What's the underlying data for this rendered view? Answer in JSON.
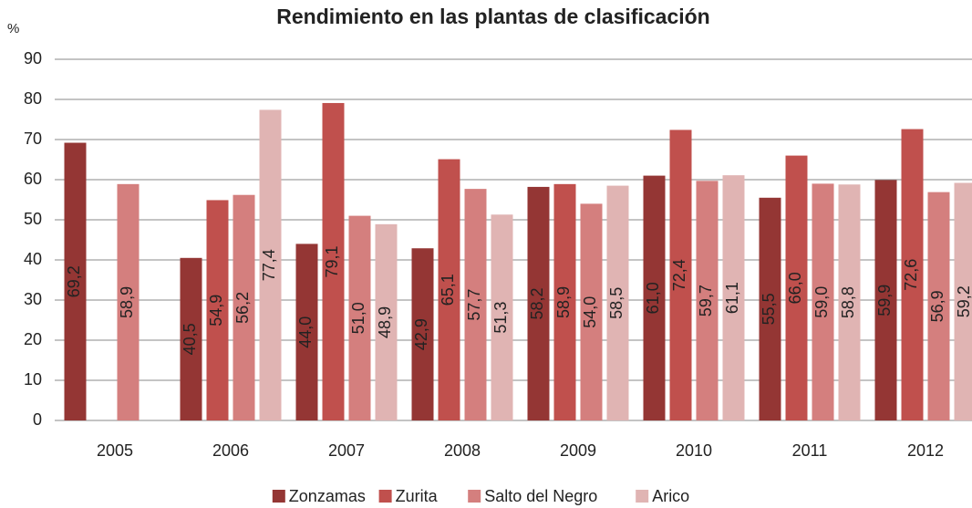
{
  "chart_data": {
    "type": "bar",
    "title": "Rendimiento en las plantas de clasificación",
    "y_label": "%",
    "categories": [
      "2005",
      "2006",
      "2007",
      "2008",
      "2009",
      "2010",
      "2011",
      "2012"
    ],
    "series": [
      {
        "name": "Zonzamas",
        "color": "#943634",
        "values": [
          69.2,
          40.5,
          44.0,
          42.9,
          58.2,
          61.0,
          55.5,
          59.9
        ],
        "value_labels": [
          "69,2",
          "40,5",
          "44,0",
          "42,9",
          "58,2",
          "61,0",
          "55,5",
          "59,9"
        ]
      },
      {
        "name": "Zurita",
        "color": "#c0504d",
        "values": [
          null,
          54.9,
          79.1,
          65.1,
          58.9,
          72.4,
          66.0,
          72.6
        ],
        "value_labels": [
          null,
          "54,9",
          "79,1",
          "65,1",
          "58,9",
          "72,4",
          "66,0",
          "72,6"
        ]
      },
      {
        "name": "Salto del Negro",
        "color": "#d47f7e",
        "values": [
          58.9,
          56.2,
          51.0,
          57.7,
          54.0,
          59.7,
          59.0,
          56.9
        ],
        "value_labels": [
          "58,9",
          "56,2",
          "51,0",
          "57,7",
          "54,0",
          "59,7",
          "59,0",
          "56,9"
        ]
      },
      {
        "name": "Arico",
        "color": "#e0b4b3",
        "values": [
          null,
          77.4,
          48.9,
          51.3,
          58.5,
          61.1,
          58.8,
          59.2
        ],
        "value_labels": [
          null,
          "77,4",
          "48,9",
          "51,3",
          "58,5",
          "61,1",
          "58,8",
          "59,2"
        ]
      }
    ],
    "ylim": [
      0,
      90
    ],
    "yticks": [
      0,
      10,
      20,
      30,
      40,
      50,
      60,
      70,
      80,
      90
    ],
    "grid": true,
    "legend": "bottom"
  }
}
